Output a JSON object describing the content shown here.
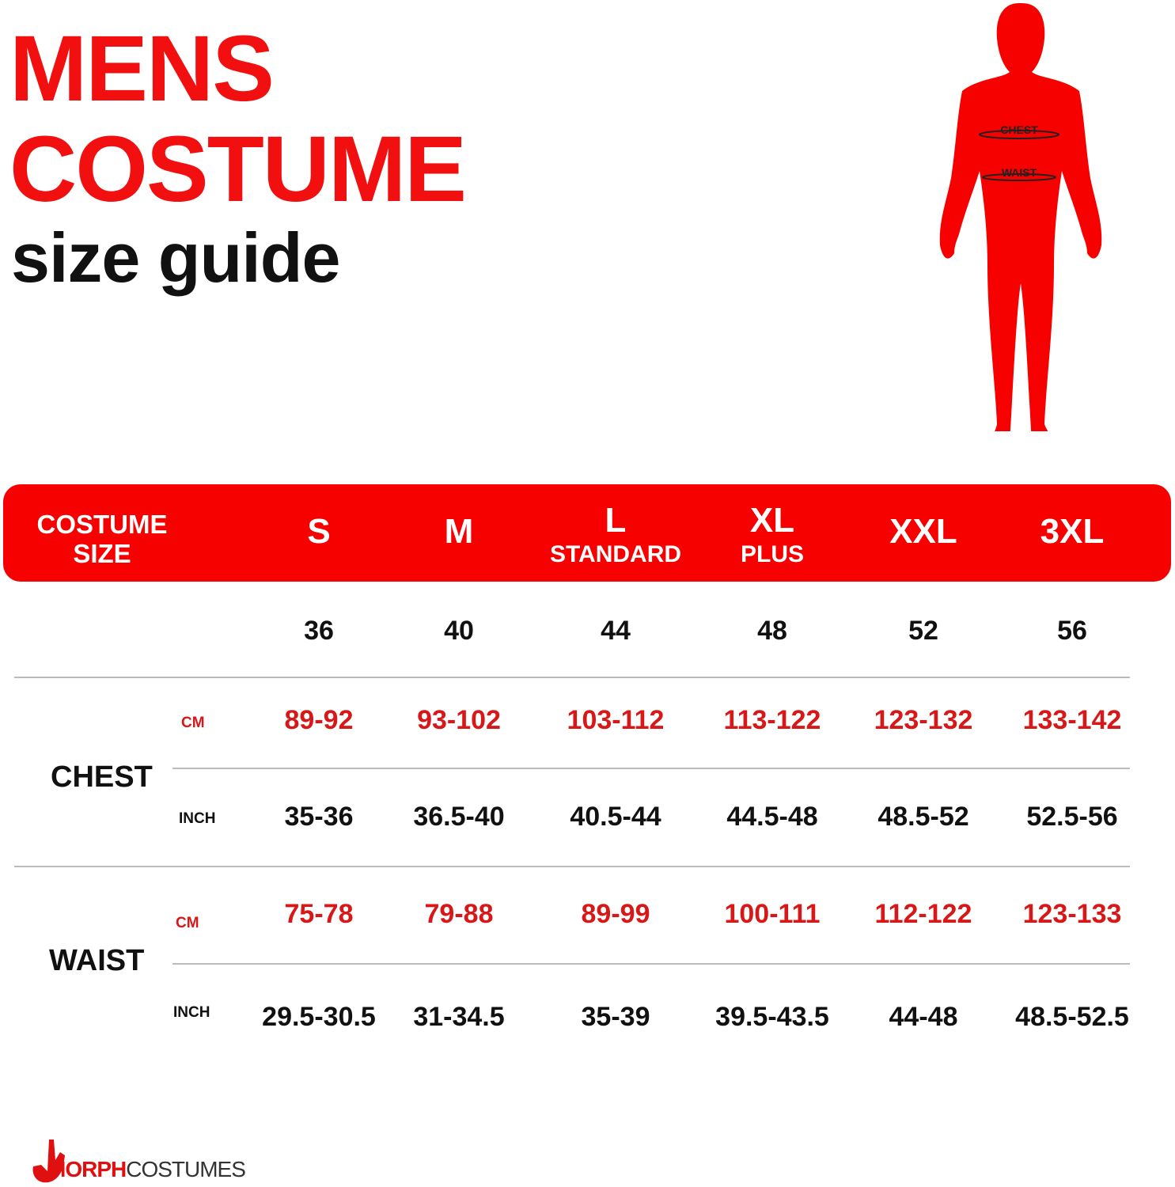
{
  "title": {
    "line1": "MENS",
    "line2": "COSTUME",
    "line3": "size guide"
  },
  "figure": {
    "chest_label": "CHEST",
    "waist_label": "WAIST",
    "color": "#f70000"
  },
  "header": {
    "first": [
      "COSTUME",
      "SIZE"
    ],
    "sizes": [
      {
        "main": "S",
        "sub": ""
      },
      {
        "main": "M",
        "sub": ""
      },
      {
        "main": "L",
        "sub": "STANDARD"
      },
      {
        "main": "XL",
        "sub": "PLUS"
      },
      {
        "main": "XXL",
        "sub": ""
      },
      {
        "main": "3XL",
        "sub": ""
      }
    ]
  },
  "size_numbers": [
    "36",
    "40",
    "44",
    "48",
    "52",
    "56"
  ],
  "chest": {
    "label": "CHEST",
    "cm_label": "CM",
    "inch_label": "INCH",
    "cm": [
      "89-92",
      "93-102",
      "103-112",
      "113-122",
      "123-132",
      "133-142"
    ],
    "inch": [
      "35-36",
      "36.5-40",
      "40.5-44",
      "44.5-48",
      "48.5-52",
      "52.5-56"
    ]
  },
  "waist": {
    "label": "WAIST",
    "cm_label": "CM",
    "inch_label": "INCH",
    "cm": [
      "75-78",
      "79-88",
      "89-99",
      "100-111",
      "112-122",
      "123-133"
    ],
    "inch": [
      "29.5-30.5",
      "31-34.5",
      "35-39",
      "39.5-43.5",
      "44-48",
      "48.5-52.5"
    ]
  },
  "logo": {
    "text_red": "MORPH",
    "text_dark": "COSTUMES"
  },
  "colors": {
    "brand_red": "#f70000",
    "value_red": "#d81818"
  }
}
